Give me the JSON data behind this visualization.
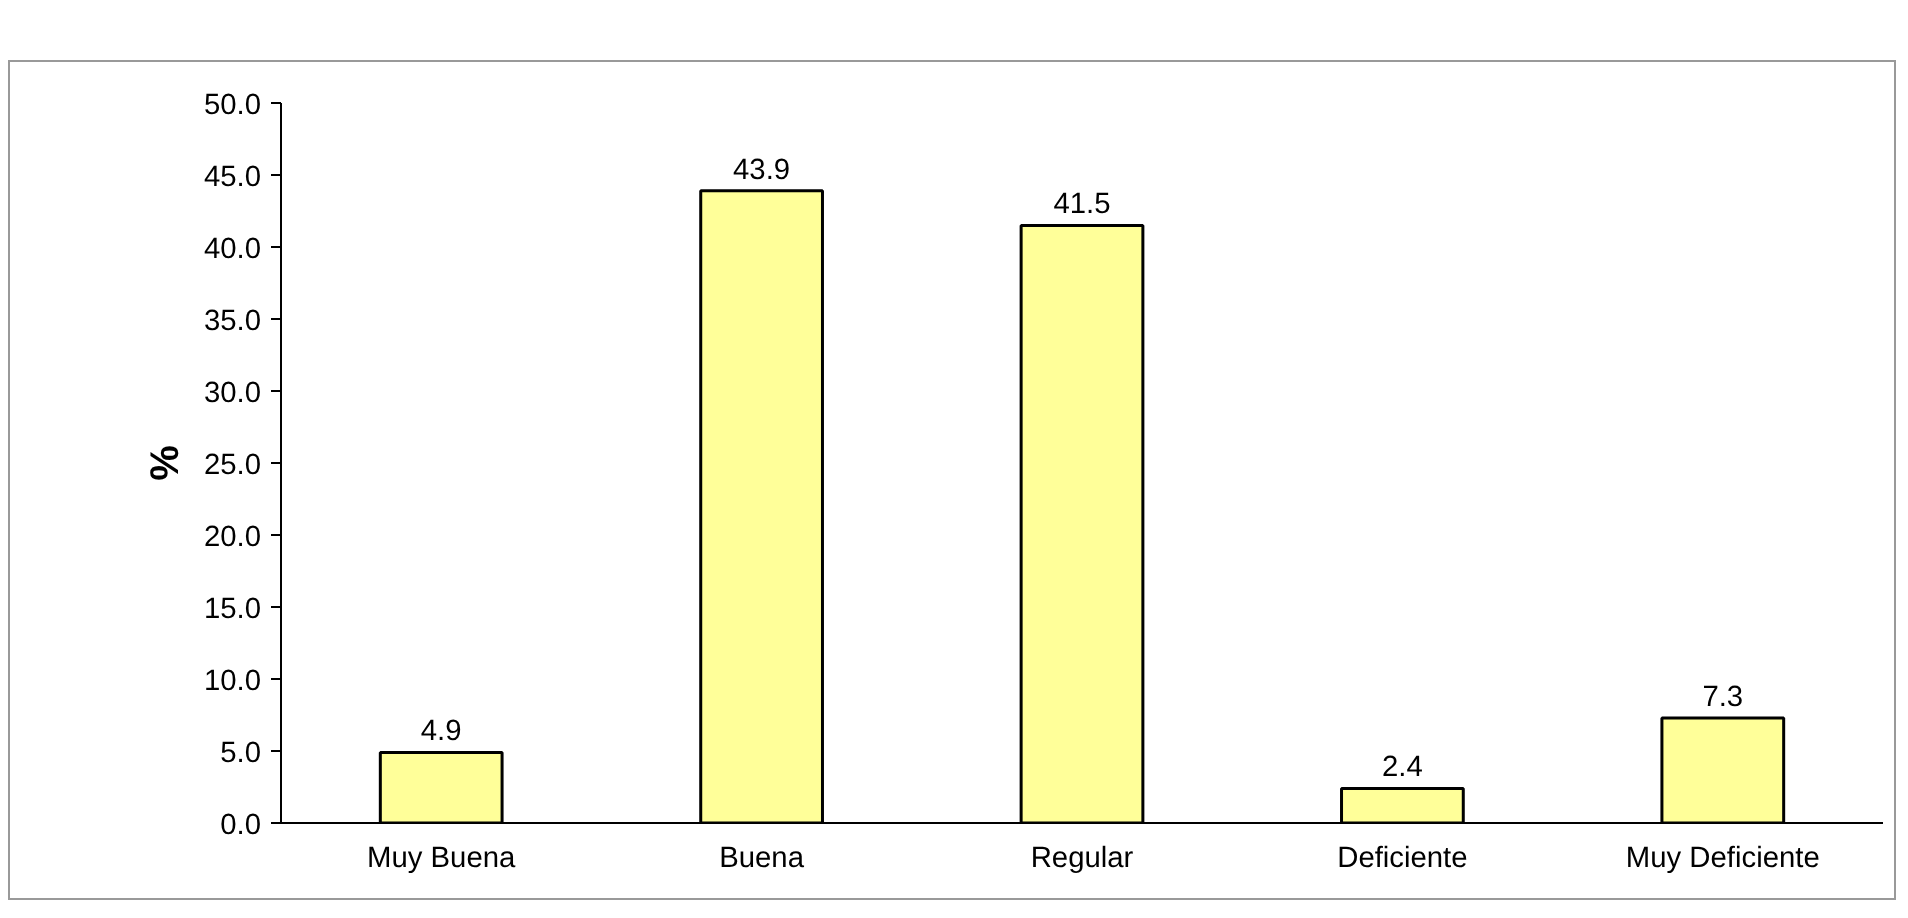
{
  "chart_data": {
    "type": "bar",
    "ylabel": "%",
    "categories": [
      "Muy Buena",
      "Buena",
      "Regular",
      "Deficiente",
      "Muy Deficiente"
    ],
    "values": [
      4.9,
      43.9,
      41.5,
      2.4,
      7.3
    ],
    "color": "#ffff99",
    "ylim": [
      0,
      50
    ],
    "yticks": [
      {
        "value": 0,
        "label": "0.0"
      },
      {
        "value": 5,
        "label": "5.0"
      },
      {
        "value": 10,
        "label": "10.0"
      },
      {
        "value": 15,
        "label": "15.0"
      },
      {
        "value": 20,
        "label": "20.0"
      },
      {
        "value": 25,
        "label": "25.0"
      },
      {
        "value": 30,
        "label": "30.0"
      },
      {
        "value": 35,
        "label": "35.0"
      },
      {
        "value": 40,
        "label": "40.0"
      },
      {
        "value": 45,
        "label": "45.0"
      },
      {
        "value": 50,
        "label": "50.0"
      }
    ],
    "data_labels": true,
    "grid": false
  }
}
